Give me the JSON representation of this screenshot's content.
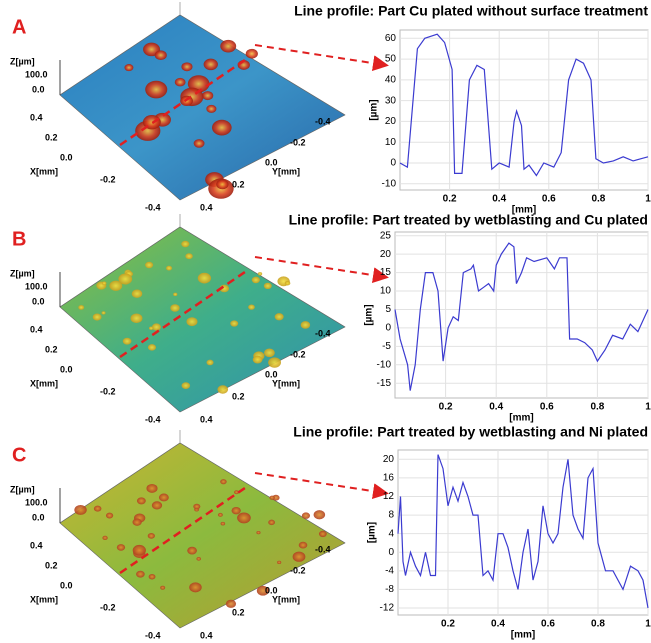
{
  "panels": [
    {
      "letter": "A",
      "surface": {
        "z_label": "Z[µm]",
        "z_ticks": [
          "100.0",
          "0.0"
        ],
        "x_label": "X[mm]",
        "x_ticks": [
          "0.4",
          "0.2",
          "0.0",
          "-0.2",
          "-0.4"
        ],
        "y_label": "Y[mm]",
        "y_ticks": [
          "-0.4",
          "-0.2",
          "0.0",
          "0.2",
          "0.4"
        ]
      }
    },
    {
      "letter": "B",
      "surface": {
        "z_label": "Z[µm]",
        "z_ticks": [
          "100.0",
          "0.0"
        ],
        "x_label": "X[mm]",
        "x_ticks": [
          "0.4",
          "0.2",
          "0.0",
          "-0.2",
          "-0.4"
        ],
        "y_label": "Y[mm]",
        "y_ticks": [
          "-0.4",
          "-0.2",
          "0.0",
          "0.2",
          "0.4"
        ]
      }
    },
    {
      "letter": "C",
      "surface": {
        "z_label": "Z[µm]",
        "z_ticks": [
          "100.0",
          "0.0"
        ],
        "x_label": "X[mm]",
        "x_ticks": [
          "0.4",
          "0.2",
          "0.0",
          "-0.2",
          "-0.4"
        ],
        "y_label": "Y[mm]",
        "y_ticks": [
          "-0.4",
          "-0.2",
          "0.0",
          "0.2",
          "0.4"
        ]
      }
    }
  ],
  "chart_data": [
    {
      "type": "line",
      "title": "Line profile: Part Cu plated without surface treatment",
      "x_label": "[mm]",
      "y_label": "[µm]",
      "color": "#3b3bd0",
      "grid": true,
      "x": [
        0,
        0.03,
        0.07,
        0.1,
        0.15,
        0.18,
        0.21,
        0.22,
        0.25,
        0.28,
        0.31,
        0.34,
        0.37,
        0.4,
        0.44,
        0.46,
        0.47,
        0.49,
        0.5,
        0.52,
        0.55,
        0.58,
        0.62,
        0.65,
        0.68,
        0.71,
        0.74,
        0.77,
        0.79,
        0.82,
        0.86,
        0.9,
        0.94,
        0.97,
        1
      ],
      "values": [
        0,
        -2,
        55,
        60,
        62,
        58,
        45,
        -5,
        -5,
        40,
        47,
        45,
        -3,
        0,
        -2,
        20,
        25,
        18,
        -3,
        -1,
        -6,
        0,
        -2,
        5,
        40,
        50,
        48,
        40,
        2,
        0,
        1,
        3,
        1,
        2,
        3
      ],
      "xlim": [
        0,
        1
      ],
      "ylim": [
        -13,
        64
      ],
      "xticks": [
        0.2,
        0.4,
        0.6,
        0.8,
        1
      ],
      "yticks": [
        -10,
        0,
        10,
        20,
        30,
        40,
        50,
        60
      ]
    },
    {
      "type": "line",
      "title": "Line profile: Part treated by wetblasting and Cu plated",
      "x_label": "[mm]",
      "y_label": "[µm]",
      "color": "#3b3bd0",
      "grid": true,
      "x": [
        0,
        0.02,
        0.05,
        0.06,
        0.08,
        0.1,
        0.12,
        0.15,
        0.17,
        0.19,
        0.21,
        0.23,
        0.25,
        0.27,
        0.3,
        0.31,
        0.33,
        0.35,
        0.37,
        0.39,
        0.4,
        0.42,
        0.45,
        0.47,
        0.48,
        0.5,
        0.52,
        0.55,
        0.6,
        0.63,
        0.65,
        0.68,
        0.69,
        0.72,
        0.75,
        0.78,
        0.8,
        0.83,
        0.86,
        0.9,
        0.93,
        0.96,
        1
      ],
      "values": [
        5,
        -3,
        -10,
        -17,
        -10,
        5,
        15,
        15,
        10,
        -9,
        0,
        3,
        2,
        15,
        16,
        17,
        10,
        11,
        12,
        10,
        17,
        20,
        23,
        22,
        12,
        15,
        19,
        18,
        19,
        16,
        19,
        19,
        -3,
        -3,
        -4,
        -6,
        -9,
        -6,
        -2,
        -3,
        1,
        -1,
        5
      ],
      "xlim": [
        0,
        1
      ],
      "ylim": [
        -19,
        26
      ],
      "xticks": [
        0.2,
        0.4,
        0.6,
        0.8,
        1
      ],
      "yticks": [
        -15,
        -10,
        -5,
        0,
        5,
        10,
        15,
        20,
        25
      ]
    },
    {
      "type": "line",
      "title": "Line profile: Part treated by wetblasting and Ni plated",
      "x_label": "[mm]",
      "y_label": "[µm]",
      "color": "#3b3bd0",
      "grid": true,
      "x": [
        0,
        0.01,
        0.02,
        0.03,
        0.05,
        0.07,
        0.09,
        0.11,
        0.13,
        0.15,
        0.16,
        0.18,
        0.2,
        0.22,
        0.24,
        0.26,
        0.28,
        0.3,
        0.32,
        0.34,
        0.36,
        0.38,
        0.4,
        0.42,
        0.44,
        0.46,
        0.48,
        0.5,
        0.52,
        0.54,
        0.56,
        0.58,
        0.6,
        0.62,
        0.64,
        0.66,
        0.68,
        0.7,
        0.72,
        0.74,
        0.76,
        0.78,
        0.8,
        0.83,
        0.86,
        0.9,
        0.93,
        0.96,
        0.98,
        1
      ],
      "values": [
        4,
        12,
        -2,
        -5,
        0,
        -3,
        -5,
        0,
        -5,
        -5,
        21,
        18,
        10,
        14,
        11,
        15,
        12,
        8,
        8,
        -5,
        -4,
        -6,
        4,
        4,
        1,
        -4,
        -8,
        0,
        5,
        -6,
        -2,
        10,
        4,
        2,
        4,
        14,
        20,
        8,
        5,
        3,
        16,
        18,
        2,
        -4,
        -4,
        -8,
        -3,
        -4,
        -6,
        -12
      ],
      "xlim": [
        0,
        1
      ],
      "ylim": [
        -13.5,
        22
      ],
      "xticks": [
        0.2,
        0.4,
        0.6,
        0.8,
        1
      ],
      "yticks": [
        -12,
        -8,
        -4,
        0,
        4,
        8,
        12,
        16,
        20
      ]
    }
  ]
}
